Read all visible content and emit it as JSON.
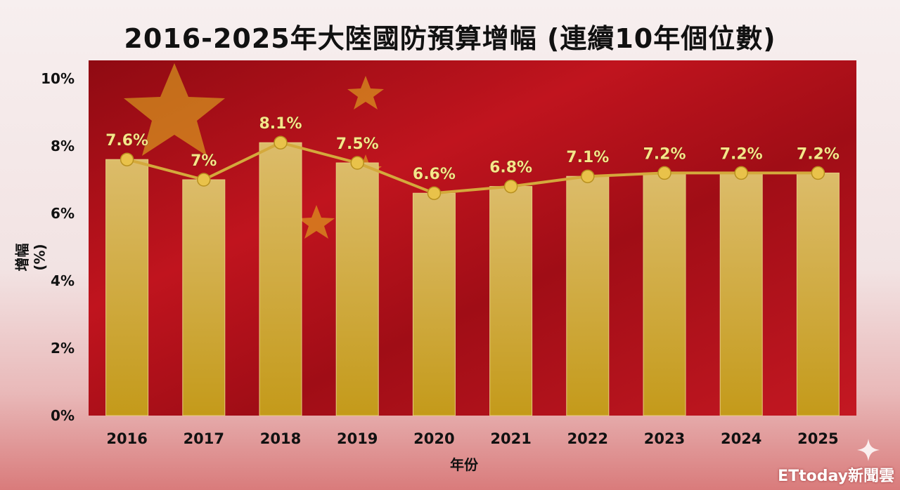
{
  "chart_data": {
    "type": "bar",
    "title": "2016-2025年大陸國防預算增幅 (連續10年個位數)",
    "xlabel": "年份",
    "ylabel": "增幅 (%)",
    "categories": [
      "2016",
      "2017",
      "2018",
      "2019",
      "2020",
      "2021",
      "2022",
      "2023",
      "2024",
      "2025"
    ],
    "values": [
      7.6,
      7.0,
      8.1,
      7.5,
      6.6,
      6.8,
      7.1,
      7.2,
      7.2,
      7.2
    ],
    "data_labels": [
      "7.6%",
      "7%",
      "8.1%",
      "7.5%",
      "6.6%",
      "6.8%",
      "7.1%",
      "7.2%",
      "7.2%",
      "7.2%"
    ],
    "ylim": [
      0,
      10
    ],
    "yticks": [
      0,
      2,
      4,
      6,
      8,
      10
    ],
    "ytick_labels": [
      "0%",
      "2%",
      "4%",
      "6%",
      "8%",
      "10%"
    ],
    "overlay_line": true,
    "grid": false,
    "colors": {
      "bar_top": "#d9b560",
      "bar_bottom": "#c59a1c",
      "line": "#d4a93c",
      "marker": "#e9c24a",
      "label": "#f7e58a",
      "plot_bg": "#b5121b"
    }
  },
  "watermark": "ETtoday新聞雲"
}
